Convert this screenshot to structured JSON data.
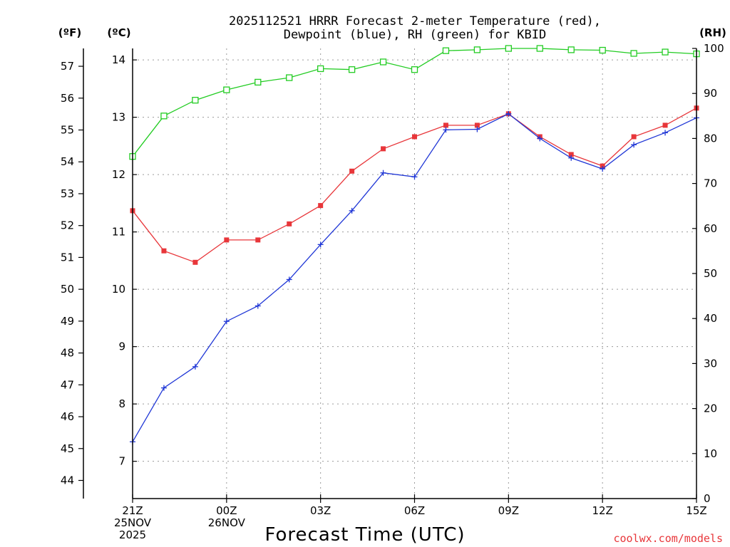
{
  "chart_data": {
    "type": "line",
    "title_line1": "2025112521 HRRR Forecast 2-meter Temperature (red),",
    "title_line2": "Dewpoint (blue), RH (green) for KBID",
    "xlabel": "Forecast Time (UTC)",
    "credit": "coolwx.com/models",
    "units": {
      "fahrenheit": "(ºF)",
      "celsius": "(ºC)",
      "rh": "(RH)"
    },
    "x_ticks": [
      {
        "hour": 0,
        "lines": [
          "21Z",
          "25NOV",
          "2025"
        ]
      },
      {
        "hour": 3,
        "lines": [
          "00Z",
          "26NOV"
        ]
      },
      {
        "hour": 6,
        "lines": [
          "03Z"
        ]
      },
      {
        "hour": 9,
        "lines": [
          "06Z"
        ]
      },
      {
        "hour": 12,
        "lines": [
          "09Z"
        ]
      },
      {
        "hour": 15,
        "lines": [
          "12Z"
        ]
      },
      {
        "hour": 18,
        "lines": [
          "15Z"
        ]
      }
    ],
    "xlim": [
      0,
      18
    ],
    "celsius_axis": {
      "lim": [
        6.35,
        14.2
      ],
      "ticks": [
        7,
        8,
        9,
        10,
        11,
        12,
        13,
        14
      ]
    },
    "fahrenheit_ticks": [
      44,
      45,
      46,
      47,
      48,
      49,
      50,
      51,
      52,
      53,
      54,
      55,
      56,
      57
    ],
    "rh_axis": {
      "lim": [
        0,
        100
      ],
      "ticks": [
        0,
        10,
        20,
        30,
        40,
        50,
        60,
        70,
        80,
        90,
        100
      ]
    },
    "grid": true,
    "series": [
      {
        "name": "Temperature",
        "axis": "celsius",
        "color": "#e8363a",
        "marker": "filled-square",
        "hours": [
          0,
          1,
          2,
          3,
          4,
          5,
          6,
          7,
          8,
          9,
          10,
          11,
          12,
          13,
          14,
          15,
          16,
          17,
          18
        ],
        "values": [
          11.37,
          10.67,
          10.47,
          10.86,
          10.86,
          11.14,
          11.46,
          12.06,
          12.45,
          12.66,
          12.86,
          12.86,
          13.06,
          12.66,
          12.35,
          12.15,
          12.66,
          12.86,
          13.16
        ]
      },
      {
        "name": "Dewpoint",
        "axis": "celsius",
        "color": "#1f36d6",
        "marker": "plus",
        "hours": [
          0,
          1,
          2,
          3,
          4,
          5,
          6,
          7,
          8,
          9,
          10,
          11,
          12,
          13,
          14,
          15,
          16,
          17,
          18
        ],
        "values": [
          7.34,
          8.28,
          8.65,
          9.44,
          9.71,
          10.17,
          10.78,
          11.37,
          12.03,
          11.96,
          12.78,
          12.79,
          13.06,
          12.63,
          12.29,
          12.1,
          12.52,
          12.73,
          12.99
        ]
      },
      {
        "name": "RH",
        "axis": "rh",
        "color": "#22cc22",
        "marker": "open-square",
        "hours": [
          0,
          1,
          2,
          3,
          4,
          5,
          6,
          7,
          8,
          9,
          10,
          11,
          12,
          13,
          14,
          15,
          16,
          17,
          18
        ],
        "values": [
          76.0,
          85.0,
          88.5,
          90.8,
          92.5,
          93.5,
          95.5,
          95.3,
          97.0,
          95.3,
          99.5,
          99.7,
          100.0,
          100.0,
          99.7,
          99.6,
          98.9,
          99.2,
          98.8
        ]
      }
    ]
  }
}
